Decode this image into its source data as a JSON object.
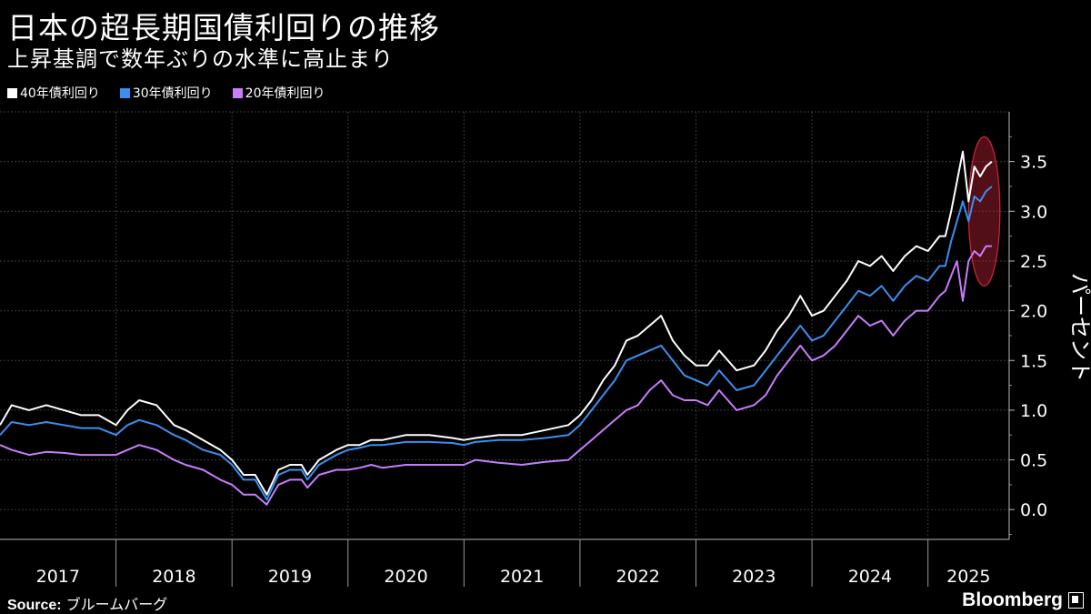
{
  "header": {
    "title": "日本の超長期国債利回りの推移",
    "subtitle": "上昇基調で数年ぶりの水準に高止まり"
  },
  "legend": [
    {
      "label": "40年債利回り",
      "color": "#ffffff"
    },
    {
      "label": "30年債利回り",
      "color": "#3b8ff0"
    },
    {
      "label": "20年債利回り",
      "color": "#c77dff"
    }
  ],
  "footer": {
    "source_label": "Source:",
    "source_value": "ブルームバーグ",
    "brand": "Bloomberg"
  },
  "chart_data": {
    "type": "line",
    "xlabel": "",
    "ylabel": "パーセント",
    "x_start": 2017.0,
    "x_end": 2025.7,
    "ylim": [
      -0.3,
      4.0
    ],
    "yticks": [
      "0.0",
      "0.5",
      "1.0",
      "1.5",
      "2.0",
      "2.5",
      "3.0",
      "3.5"
    ],
    "ytick_values": [
      0.0,
      0.5,
      1.0,
      1.5,
      2.0,
      2.5,
      3.0,
      3.5
    ],
    "xticks": [
      "2017",
      "2018",
      "2019",
      "2020",
      "2021",
      "2022",
      "2023",
      "2024",
      "2025"
    ],
    "xtick_values": [
      2017,
      2018,
      2019,
      2020,
      2021,
      2022,
      2023,
      2024,
      2025
    ],
    "grid": true,
    "annotation": {
      "type": "ellipse-highlight",
      "x_range": [
        2025.35,
        2025.62
      ],
      "y_range": [
        2.25,
        3.75
      ],
      "color": "#d0263b"
    },
    "series": [
      {
        "name": "40年債利回り",
        "color": "#ffffff",
        "x": [
          2017.0,
          2017.1,
          2017.25,
          2017.4,
          2017.55,
          2017.7,
          2017.85,
          2018.0,
          2018.1,
          2018.2,
          2018.35,
          2018.5,
          2018.6,
          2018.75,
          2018.9,
          2019.0,
          2019.1,
          2019.2,
          2019.3,
          2019.4,
          2019.5,
          2019.6,
          2019.65,
          2019.75,
          2019.9,
          2020.0,
          2020.1,
          2020.2,
          2020.3,
          2020.5,
          2020.7,
          2020.9,
          2021.0,
          2021.1,
          2021.3,
          2021.5,
          2021.7,
          2021.9,
          2022.0,
          2022.1,
          2022.2,
          2022.3,
          2022.4,
          2022.5,
          2022.6,
          2022.7,
          2022.8,
          2022.9,
          2023.0,
          2023.1,
          2023.2,
          2023.35,
          2023.5,
          2023.6,
          2023.7,
          2023.8,
          2023.9,
          2024.0,
          2024.1,
          2024.2,
          2024.3,
          2024.4,
          2024.5,
          2024.6,
          2024.7,
          2024.8,
          2024.9,
          2025.0,
          2025.1,
          2025.15,
          2025.2,
          2025.25,
          2025.3,
          2025.35,
          2025.4,
          2025.45,
          2025.5,
          2025.55
        ],
        "y": [
          0.85,
          1.05,
          1.0,
          1.05,
          1.0,
          0.95,
          0.95,
          0.85,
          1.0,
          1.1,
          1.05,
          0.85,
          0.8,
          0.7,
          0.6,
          0.5,
          0.35,
          0.35,
          0.15,
          0.4,
          0.45,
          0.45,
          0.35,
          0.5,
          0.6,
          0.65,
          0.65,
          0.7,
          0.7,
          0.75,
          0.75,
          0.72,
          0.7,
          0.72,
          0.75,
          0.75,
          0.8,
          0.85,
          0.95,
          1.1,
          1.3,
          1.45,
          1.7,
          1.75,
          1.85,
          1.95,
          1.7,
          1.55,
          1.45,
          1.45,
          1.6,
          1.4,
          1.45,
          1.6,
          1.8,
          1.95,
          2.15,
          1.95,
          2.0,
          2.15,
          2.3,
          2.5,
          2.45,
          2.55,
          2.4,
          2.55,
          2.65,
          2.6,
          2.75,
          2.75,
          3.0,
          3.3,
          3.6,
          3.1,
          3.45,
          3.35,
          3.45,
          3.5
        ]
      },
      {
        "name": "30年債利回り",
        "color": "#3b8ff0",
        "x": [
          2017.0,
          2017.1,
          2017.25,
          2017.4,
          2017.55,
          2017.7,
          2017.85,
          2018.0,
          2018.1,
          2018.2,
          2018.35,
          2018.5,
          2018.6,
          2018.75,
          2018.9,
          2019.0,
          2019.1,
          2019.2,
          2019.3,
          2019.4,
          2019.5,
          2019.6,
          2019.65,
          2019.75,
          2019.9,
          2020.0,
          2020.1,
          2020.2,
          2020.3,
          2020.5,
          2020.7,
          2020.9,
          2021.0,
          2021.1,
          2021.3,
          2021.5,
          2021.7,
          2021.9,
          2022.0,
          2022.1,
          2022.2,
          2022.3,
          2022.4,
          2022.5,
          2022.6,
          2022.7,
          2022.8,
          2022.9,
          2023.0,
          2023.1,
          2023.2,
          2023.35,
          2023.5,
          2023.6,
          2023.7,
          2023.8,
          2023.9,
          2024.0,
          2024.1,
          2024.2,
          2024.3,
          2024.4,
          2024.5,
          2024.6,
          2024.7,
          2024.8,
          2024.9,
          2025.0,
          2025.1,
          2025.15,
          2025.2,
          2025.25,
          2025.3,
          2025.35,
          2025.4,
          2025.45,
          2025.5,
          2025.55
        ],
        "y": [
          0.75,
          0.88,
          0.85,
          0.88,
          0.85,
          0.82,
          0.82,
          0.75,
          0.85,
          0.9,
          0.85,
          0.75,
          0.7,
          0.6,
          0.55,
          0.45,
          0.3,
          0.3,
          0.1,
          0.35,
          0.4,
          0.4,
          0.3,
          0.45,
          0.55,
          0.6,
          0.62,
          0.65,
          0.65,
          0.68,
          0.68,
          0.67,
          0.65,
          0.68,
          0.7,
          0.7,
          0.72,
          0.75,
          0.85,
          1.0,
          1.15,
          1.3,
          1.5,
          1.55,
          1.6,
          1.65,
          1.5,
          1.35,
          1.3,
          1.25,
          1.4,
          1.2,
          1.25,
          1.4,
          1.55,
          1.7,
          1.85,
          1.7,
          1.75,
          1.9,
          2.05,
          2.2,
          2.15,
          2.25,
          2.1,
          2.25,
          2.35,
          2.3,
          2.45,
          2.45,
          2.7,
          2.9,
          3.1,
          2.9,
          3.15,
          3.1,
          3.2,
          3.25
        ]
      },
      {
        "name": "20年債利回り",
        "color": "#c77dff",
        "x": [
          2017.0,
          2017.1,
          2017.25,
          2017.4,
          2017.55,
          2017.7,
          2017.85,
          2018.0,
          2018.1,
          2018.2,
          2018.35,
          2018.5,
          2018.6,
          2018.75,
          2018.9,
          2019.0,
          2019.1,
          2019.2,
          2019.3,
          2019.4,
          2019.5,
          2019.6,
          2019.65,
          2019.75,
          2019.9,
          2020.0,
          2020.1,
          2020.2,
          2020.3,
          2020.5,
          2020.7,
          2020.9,
          2021.0,
          2021.1,
          2021.3,
          2021.5,
          2021.7,
          2021.9,
          2022.0,
          2022.1,
          2022.2,
          2022.3,
          2022.4,
          2022.5,
          2022.6,
          2022.7,
          2022.8,
          2022.9,
          2023.0,
          2023.1,
          2023.2,
          2023.35,
          2023.5,
          2023.6,
          2023.7,
          2023.8,
          2023.9,
          2024.0,
          2024.1,
          2024.2,
          2024.3,
          2024.4,
          2024.5,
          2024.6,
          2024.7,
          2024.8,
          2024.9,
          2025.0,
          2025.1,
          2025.15,
          2025.2,
          2025.25,
          2025.3,
          2025.35,
          2025.4,
          2025.45,
          2025.5,
          2025.55
        ],
        "y": [
          0.65,
          0.6,
          0.55,
          0.58,
          0.57,
          0.55,
          0.55,
          0.55,
          0.6,
          0.65,
          0.6,
          0.5,
          0.45,
          0.4,
          0.3,
          0.25,
          0.15,
          0.15,
          0.05,
          0.25,
          0.3,
          0.3,
          0.22,
          0.35,
          0.4,
          0.4,
          0.42,
          0.45,
          0.42,
          0.45,
          0.45,
          0.45,
          0.45,
          0.5,
          0.47,
          0.45,
          0.48,
          0.5,
          0.6,
          0.7,
          0.8,
          0.9,
          1.0,
          1.05,
          1.2,
          1.3,
          1.15,
          1.1,
          1.1,
          1.05,
          1.2,
          1.0,
          1.05,
          1.15,
          1.35,
          1.5,
          1.65,
          1.5,
          1.55,
          1.65,
          1.8,
          1.95,
          1.85,
          1.9,
          1.75,
          1.9,
          2.0,
          2.0,
          2.15,
          2.2,
          2.35,
          2.5,
          2.1,
          2.5,
          2.6,
          2.55,
          2.65,
          2.65
        ]
      }
    ]
  }
}
